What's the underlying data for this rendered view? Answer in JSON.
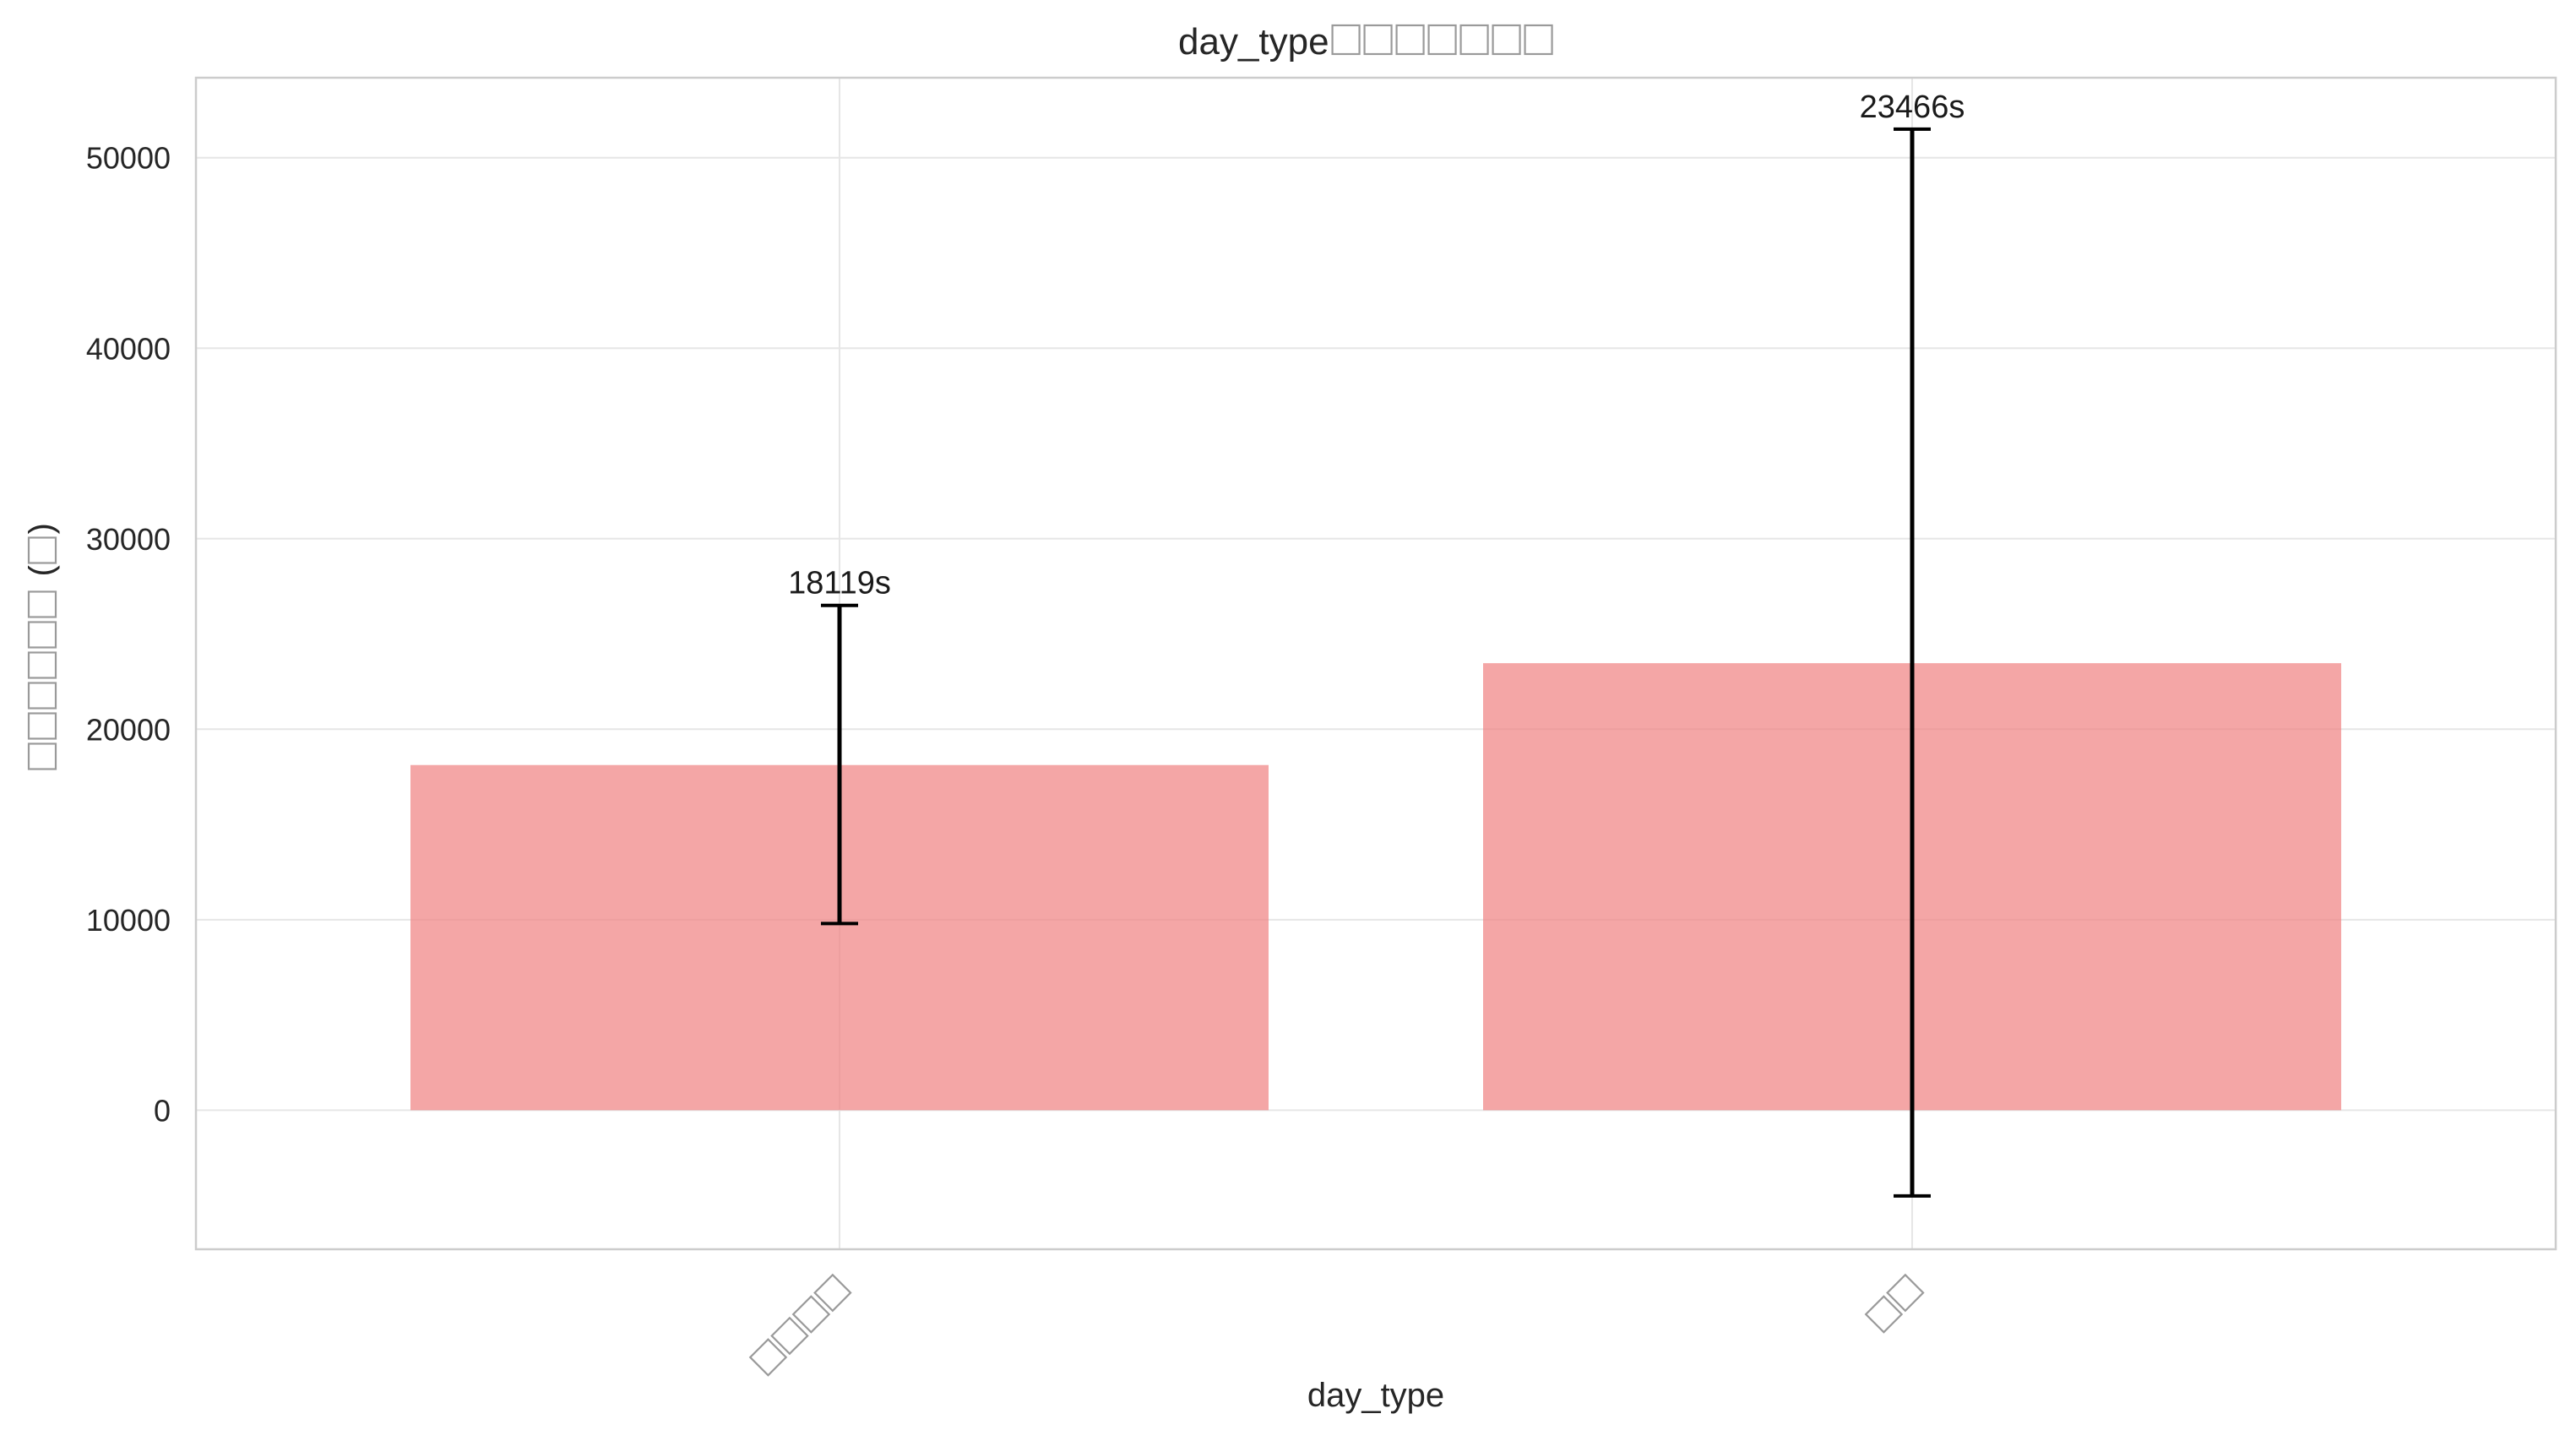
{
  "chart_data": {
    "type": "bar",
    "title_prefix": "day_type",
    "title_missing_glyphs": 7,
    "xlabel": "day_type",
    "ylabel_missing_glyphs": 6,
    "ylabel_suffix_missing_glyphs": 1,
    "categories": [
      "",
      ""
    ],
    "category_missing_glyphs": [
      4,
      2
    ],
    "values": [
      18119,
      23466
    ],
    "error_low": [
      9800,
      -4500
    ],
    "error_high": [
      26500,
      51500
    ],
    "data_labels": [
      "18119s",
      "23466s"
    ],
    "ylim": [
      -7300,
      54200
    ],
    "yticks": [
      0,
      10000,
      20000,
      30000,
      40000,
      50000
    ],
    "ytick_labels": [
      "0",
      "10000",
      "20000",
      "30000",
      "40000",
      "50000"
    ],
    "grid": true,
    "bar_color": "#f08080",
    "error_bar_color": "#000000"
  }
}
